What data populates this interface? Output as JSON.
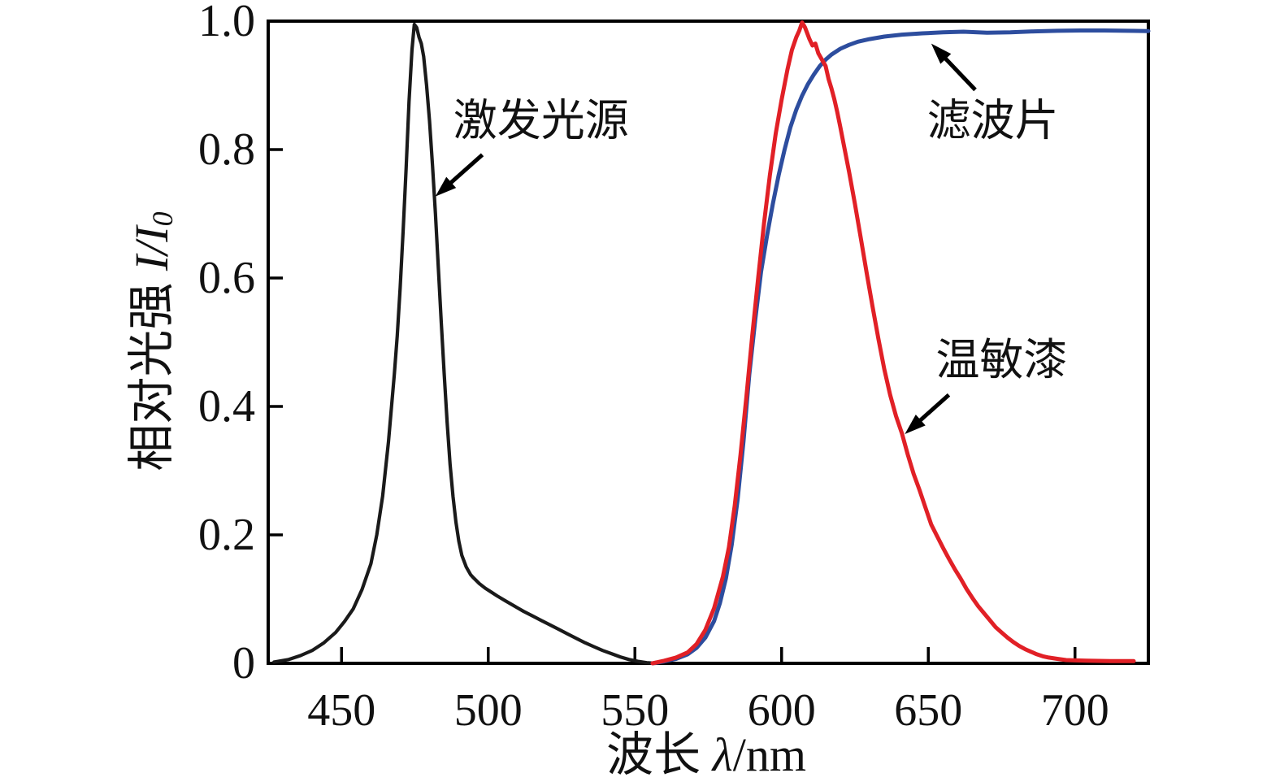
{
  "figure": {
    "background": "#ffffff",
    "frame_color": "#000000",
    "tick_color": "#000000",
    "text_color": "#111111"
  },
  "chart_data": {
    "type": "line",
    "title": "",
    "xlabel_cjk": "波长",
    "xlabel_math_italic": "λ",
    "xlabel_math_roman": "/nm",
    "ylabel_cjk": "相对光强",
    "ylabel_math_italic": "I/I",
    "ylabel_math_sub": "0",
    "xlim": [
      425,
      725
    ],
    "ylim": [
      0,
      1.0
    ],
    "xticks": [
      450,
      500,
      550,
      600,
      650,
      700
    ],
    "yticks": [
      {
        "v": 0.0,
        "label": "0"
      },
      {
        "v": 0.2,
        "label": "0.2"
      },
      {
        "v": 0.4,
        "label": "0.4"
      },
      {
        "v": 0.6,
        "label": "0.6"
      },
      {
        "v": 0.8,
        "label": "0.8"
      },
      {
        "v": 1.0,
        "label": "1.0"
      }
    ],
    "grid": false,
    "legend_position": "none",
    "series": [
      {
        "id": "excitation-source",
        "name": "激发光源",
        "color": "#1a1a1a",
        "width": 4.2,
        "points": [
          [
            427,
            0.002
          ],
          [
            432,
            0.006
          ],
          [
            436,
            0.012
          ],
          [
            440,
            0.02
          ],
          [
            444,
            0.032
          ],
          [
            448,
            0.048
          ],
          [
            451,
            0.065
          ],
          [
            454,
            0.085
          ],
          [
            457,
            0.115
          ],
          [
            460,
            0.155
          ],
          [
            462,
            0.2
          ],
          [
            464,
            0.26
          ],
          [
            466,
            0.345
          ],
          [
            468,
            0.45
          ],
          [
            469,
            0.51
          ],
          [
            470,
            0.585
          ],
          [
            471,
            0.675
          ],
          [
            472,
            0.77
          ],
          [
            473,
            0.875
          ],
          [
            474,
            0.955
          ],
          [
            474.8,
            0.995
          ],
          [
            475.6,
            0.99
          ],
          [
            476.4,
            0.975
          ],
          [
            477.2,
            0.965
          ],
          [
            478,
            0.945
          ],
          [
            479,
            0.9
          ],
          [
            480,
            0.845
          ],
          [
            481,
            0.775
          ],
          [
            482,
            0.7
          ],
          [
            483,
            0.615
          ],
          [
            484,
            0.53
          ],
          [
            485,
            0.45
          ],
          [
            486,
            0.375
          ],
          [
            487,
            0.31
          ],
          [
            488,
            0.26
          ],
          [
            489,
            0.22
          ],
          [
            490,
            0.19
          ],
          [
            491,
            0.168
          ],
          [
            492.5,
            0.15
          ],
          [
            494,
            0.138
          ],
          [
            495,
            0.133
          ],
          [
            497,
            0.124
          ],
          [
            499,
            0.117
          ],
          [
            501,
            0.111
          ],
          [
            503,
            0.105
          ],
          [
            506,
            0.097
          ],
          [
            509,
            0.089
          ],
          [
            512,
            0.081
          ],
          [
            515,
            0.074
          ],
          [
            518,
            0.067
          ],
          [
            521,
            0.06
          ],
          [
            524,
            0.053
          ],
          [
            527,
            0.046
          ],
          [
            530,
            0.039
          ],
          [
            533,
            0.032
          ],
          [
            536,
            0.026
          ],
          [
            539,
            0.02
          ],
          [
            542,
            0.015
          ],
          [
            545,
            0.01
          ],
          [
            548,
            0.006
          ],
          [
            551,
            0.003
          ],
          [
            554,
            0.001
          ],
          [
            557,
            0.0
          ]
        ]
      },
      {
        "id": "filter",
        "name": "滤波片",
        "color": "#2d4d9e",
        "width": 5,
        "points": [
          [
            556,
            0.0
          ],
          [
            560,
            0.003
          ],
          [
            564,
            0.007
          ],
          [
            568,
            0.014
          ],
          [
            571,
            0.024
          ],
          [
            574,
            0.04
          ],
          [
            577,
            0.066
          ],
          [
            579,
            0.094
          ],
          [
            581,
            0.132
          ],
          [
            583,
            0.185
          ],
          [
            585,
            0.255
          ],
          [
            587,
            0.345
          ],
          [
            589,
            0.45
          ],
          [
            591,
            0.535
          ],
          [
            593,
            0.61
          ],
          [
            595,
            0.665
          ],
          [
            597,
            0.715
          ],
          [
            599,
            0.76
          ],
          [
            601,
            0.8
          ],
          [
            603,
            0.835
          ],
          [
            605,
            0.862
          ],
          [
            607,
            0.884
          ],
          [
            609,
            0.902
          ],
          [
            611,
            0.917
          ],
          [
            613,
            0.93
          ],
          [
            615,
            0.94
          ],
          [
            617,
            0.948
          ],
          [
            620,
            0.957
          ],
          [
            623,
            0.963
          ],
          [
            626,
            0.968
          ],
          [
            630,
            0.972
          ],
          [
            635,
            0.976
          ],
          [
            641,
            0.979
          ],
          [
            648,
            0.981
          ],
          [
            655,
            0.9825
          ],
          [
            662,
            0.9835
          ],
          [
            670,
            0.982
          ],
          [
            678,
            0.9825
          ],
          [
            686,
            0.984
          ],
          [
            694,
            0.985
          ],
          [
            702,
            0.9855
          ],
          [
            710,
            0.9855
          ],
          [
            718,
            0.985
          ],
          [
            725,
            0.9845
          ]
        ]
      },
      {
        "id": "tsp",
        "name": "温敏漆",
        "color": "#e12026",
        "width": 5,
        "points": [
          [
            556,
            0.0
          ],
          [
            560,
            0.004
          ],
          [
            564,
            0.009
          ],
          [
            568,
            0.017
          ],
          [
            571,
            0.03
          ],
          [
            574,
            0.052
          ],
          [
            577,
            0.086
          ],
          [
            580,
            0.135
          ],
          [
            582,
            0.18
          ],
          [
            584,
            0.245
          ],
          [
            586,
            0.325
          ],
          [
            588,
            0.415
          ],
          [
            590,
            0.51
          ],
          [
            592,
            0.6
          ],
          [
            594,
            0.685
          ],
          [
            596,
            0.76
          ],
          [
            598,
            0.825
          ],
          [
            600,
            0.878
          ],
          [
            602,
            0.925
          ],
          [
            603.5,
            0.955
          ],
          [
            605,
            0.975
          ],
          [
            606,
            0.985
          ],
          [
            607,
            0.998
          ],
          [
            608,
            0.99
          ],
          [
            609.5,
            0.972
          ],
          [
            610.5,
            0.962
          ],
          [
            611.5,
            0.965
          ],
          [
            612.5,
            0.95
          ],
          [
            614,
            0.938
          ],
          [
            615,
            0.93
          ],
          [
            616,
            0.91
          ],
          [
            617,
            0.895
          ],
          [
            618,
            0.878
          ],
          [
            619,
            0.858
          ],
          [
            620,
            0.835
          ],
          [
            621.5,
            0.8
          ],
          [
            623,
            0.765
          ],
          [
            625,
            0.715
          ],
          [
            627,
            0.662
          ],
          [
            629,
            0.608
          ],
          [
            631,
            0.555
          ],
          [
            633,
            0.505
          ],
          [
            635,
            0.458
          ],
          [
            637,
            0.418
          ],
          [
            639,
            0.385
          ],
          [
            641,
            0.358
          ],
          [
            643,
            0.325
          ],
          [
            645,
            0.295
          ],
          [
            647,
            0.27
          ],
          [
            649,
            0.243
          ],
          [
            651,
            0.216
          ],
          [
            653,
            0.198
          ],
          [
            655,
            0.18
          ],
          [
            657,
            0.163
          ],
          [
            659,
            0.147
          ],
          [
            661,
            0.132
          ],
          [
            663,
            0.116
          ],
          [
            665,
            0.102
          ],
          [
            667,
            0.089
          ],
          [
            669,
            0.078
          ],
          [
            671,
            0.067
          ],
          [
            673,
            0.056
          ],
          [
            675,
            0.048
          ],
          [
            677,
            0.04
          ],
          [
            679,
            0.033
          ],
          [
            681,
            0.027
          ],
          [
            683,
            0.022
          ],
          [
            685,
            0.018
          ],
          [
            687,
            0.014
          ],
          [
            689,
            0.011
          ],
          [
            691,
            0.009
          ],
          [
            694,
            0.007
          ],
          [
            697,
            0.005
          ],
          [
            700,
            0.0045
          ],
          [
            704,
            0.004
          ],
          [
            708,
            0.0038
          ],
          [
            712,
            0.0036
          ],
          [
            716,
            0.0035
          ],
          [
            720,
            0.0034
          ]
        ]
      }
    ],
    "annotations": [
      {
        "id": "excitation-source",
        "text": "激发光源",
        "label_x": 518,
        "label_y": 0.845,
        "arrow": {
          "x1": 498,
          "y1": 0.792,
          "x2": 482,
          "y2": 0.727
        }
      },
      {
        "id": "filter",
        "text": "滤波片",
        "label_x": 672,
        "label_y": 0.845,
        "arrow": {
          "x1": 666,
          "y1": 0.893,
          "x2": 651,
          "y2": 0.965
        }
      },
      {
        "id": "tsp",
        "text": "温敏漆",
        "label_x": 675,
        "label_y": 0.472,
        "arrow": {
          "x1": 657,
          "y1": 0.418,
          "x2": 642,
          "y2": 0.357
        }
      }
    ]
  }
}
